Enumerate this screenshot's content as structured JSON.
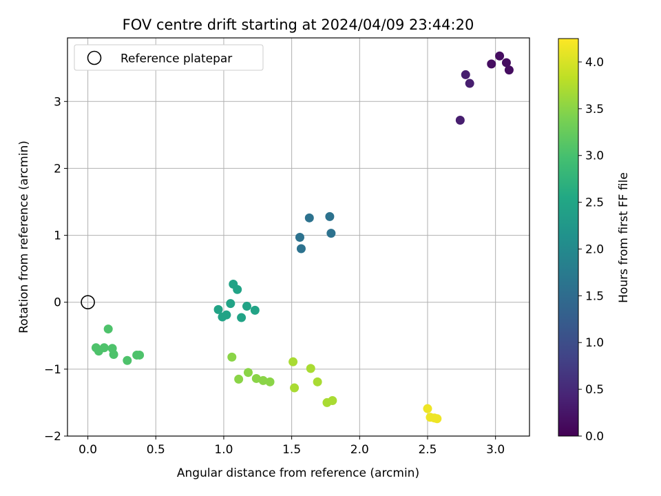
{
  "chart_data": {
    "type": "scatter",
    "title": "FOV centre drift starting at 2024/04/09 23:44:20",
    "xlabel": "Angular distance from reference (arcmin)",
    "ylabel": "Rotation from reference (arcmin)",
    "xlim": [
      -0.15,
      3.25
    ],
    "ylim": [
      -2.0,
      3.95
    ],
    "xticks": [
      "0.0",
      "0.5",
      "1.0",
      "1.5",
      "2.0",
      "2.5",
      "3.0"
    ],
    "yticks": [
      "−2",
      "−1",
      "0",
      "1",
      "2",
      "3"
    ],
    "grid": true,
    "legend": {
      "position": "top-left",
      "entries": [
        "Reference platepar"
      ]
    },
    "reference_point": {
      "x": 0.0,
      "y": 0.0
    },
    "colorbar": {
      "label": "Hours from first FF file",
      "colormap": "viridis",
      "range": [
        0.0,
        4.25
      ],
      "ticks": [
        "0.0",
        "0.5",
        "1.0",
        "1.5",
        "2.0",
        "2.5",
        "3.0",
        "3.5",
        "4.0"
      ]
    },
    "series": [
      {
        "color_value": 0.15,
        "points": [
          [
            3.03,
            3.68
          ],
          [
            3.08,
            3.58
          ],
          [
            2.97,
            3.56
          ],
          [
            3.1,
            3.47
          ]
        ]
      },
      {
        "color_value": 0.35,
        "points": [
          [
            2.78,
            3.4
          ],
          [
            2.81,
            3.27
          ],
          [
            2.74,
            2.72
          ]
        ]
      },
      {
        "color_value": 1.6,
        "points": [
          [
            1.63,
            1.26
          ],
          [
            1.78,
            1.28
          ],
          [
            1.56,
            0.97
          ],
          [
            1.79,
            1.03
          ],
          [
            1.57,
            0.8
          ]
        ]
      },
      {
        "color_value": 2.45,
        "points": [
          [
            1.07,
            0.27
          ],
          [
            1.1,
            0.19
          ],
          [
            1.05,
            -0.02
          ],
          [
            1.17,
            -0.06
          ],
          [
            0.96,
            -0.11
          ],
          [
            1.23,
            -0.12
          ],
          [
            1.02,
            -0.19
          ],
          [
            0.99,
            -0.22
          ],
          [
            1.13,
            -0.23
          ]
        ]
      },
      {
        "color_value": 3.05,
        "points": [
          [
            0.15,
            -0.4
          ],
          [
            0.06,
            -0.68
          ],
          [
            0.12,
            -0.68
          ],
          [
            0.18,
            -0.69
          ],
          [
            0.08,
            -0.73
          ],
          [
            0.36,
            -0.79
          ],
          [
            0.38,
            -0.79
          ],
          [
            0.19,
            -0.78
          ],
          [
            0.29,
            -0.87
          ]
        ]
      },
      {
        "color_value": 3.5,
        "points": [
          [
            1.06,
            -0.82
          ],
          [
            1.18,
            -1.05
          ],
          [
            1.24,
            -1.14
          ],
          [
            1.11,
            -1.15
          ],
          [
            1.29,
            -1.17
          ],
          [
            1.34,
            -1.19
          ]
        ]
      },
      {
        "color_value": 3.7,
        "points": [
          [
            1.51,
            -0.89
          ],
          [
            1.64,
            -0.99
          ],
          [
            1.69,
            -1.19
          ],
          [
            1.52,
            -1.28
          ],
          [
            1.76,
            -1.5
          ],
          [
            1.8,
            -1.47
          ]
        ]
      },
      {
        "color_value": 4.15,
        "points": [
          [
            2.5,
            -1.59
          ],
          [
            2.52,
            -1.72
          ],
          [
            2.55,
            -1.73
          ],
          [
            2.57,
            -1.74
          ]
        ]
      }
    ]
  }
}
